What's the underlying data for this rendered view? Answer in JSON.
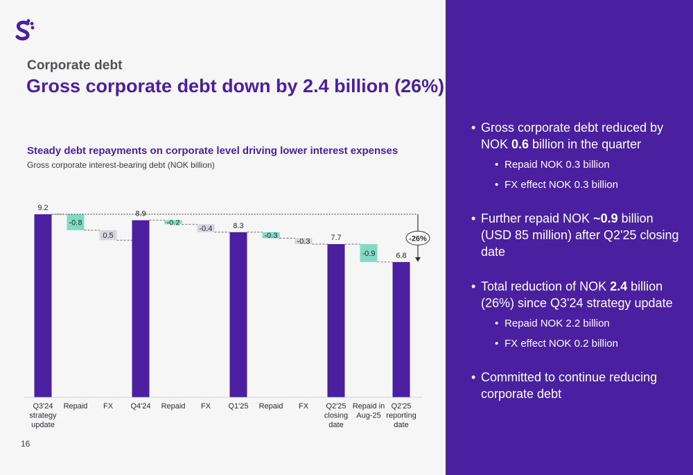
{
  "header": {
    "kicker": "Corporate debt",
    "headline": "Gross corporate debt down by 2.4 billion (26%)"
  },
  "page_number": "16",
  "brand": {
    "purple": "#4a1fa0",
    "teal": "#7fdcc2",
    "grey": "#d5d5dc",
    "logo_icon": "brand-logo-icon"
  },
  "chart_data": {
    "type": "bar",
    "subtype": "waterfall",
    "title": "Steady debt repayments on corporate level driving lower interest expenses",
    "ylabel": "Gross corporate interest-bearing debt (NOK billion)",
    "ylim": [
      0,
      9.2
    ],
    "grid": false,
    "legend": "none",
    "annotation": "-26%",
    "steps": [
      {
        "label": "Q3'24 strategy update",
        "label_lines": [
          "Q3'24",
          "strategy",
          "update"
        ],
        "kind": "total",
        "value": 9.2,
        "text": "9.2"
      },
      {
        "label": "Repaid",
        "label_lines": [
          "Repaid"
        ],
        "kind": "repaid",
        "value": -0.8,
        "text": "-0.8"
      },
      {
        "label": "FX",
        "label_lines": [
          "FX"
        ],
        "kind": "fx",
        "value": 0.5,
        "text": "0.5"
      },
      {
        "label": "Q4'24",
        "label_lines": [
          "Q4'24"
        ],
        "kind": "total",
        "value": 8.9,
        "text": "8.9"
      },
      {
        "label": "Repaid",
        "label_lines": [
          "Repaid"
        ],
        "kind": "repaid",
        "value": -0.2,
        "text": "-0.2"
      },
      {
        "label": "FX",
        "label_lines": [
          "FX"
        ],
        "kind": "fx",
        "value": -0.4,
        "text": "-0.4"
      },
      {
        "label": "Q1'25",
        "label_lines": [
          "Q1'25"
        ],
        "kind": "total",
        "value": 8.3,
        "text": "8.3"
      },
      {
        "label": "Repaid",
        "label_lines": [
          "Repaid"
        ],
        "kind": "repaid",
        "value": -0.3,
        "text": "-0.3"
      },
      {
        "label": "FX",
        "label_lines": [
          "FX"
        ],
        "kind": "fx",
        "value": -0.3,
        "text": "-0.3"
      },
      {
        "label": "Q2'25 closing date",
        "label_lines": [
          "Q2'25",
          "closing",
          "date"
        ],
        "kind": "total",
        "value": 7.7,
        "text": "7.7"
      },
      {
        "label": "Repaid in Aug-25",
        "label_lines": [
          "Repaid in",
          "Aug-25"
        ],
        "kind": "repaid",
        "value": -0.9,
        "text": "-0.9"
      },
      {
        "label": "Q2'25 reporting date",
        "label_lines": [
          "Q2'25",
          "reporting",
          "date"
        ],
        "kind": "total",
        "value": 6.8,
        "text": "6.8"
      }
    ]
  },
  "bullets": [
    {
      "text_parts": [
        "Gross corporate debt reduced by NOK ",
        "0.6",
        " billion in the quarter"
      ],
      "sub": [
        "Repaid NOK 0.3 billion",
        "FX effect NOK 0.3 billion"
      ]
    },
    {
      "text_parts": [
        "Further repaid NOK ",
        "~0.9",
        " billion (USD 85 million) after Q2'25 closing date"
      ],
      "sub": []
    },
    {
      "text_parts": [
        "Total reduction of NOK ",
        "2.4",
        " billion (26%) since Q3'24 strategy update"
      ],
      "sub": [
        "Repaid NOK 2.2 billion",
        "FX effect NOK 0.2 billion"
      ]
    },
    {
      "text_parts": [
        "Committed to continue reducing corporate debt",
        "",
        ""
      ],
      "sub": []
    }
  ]
}
